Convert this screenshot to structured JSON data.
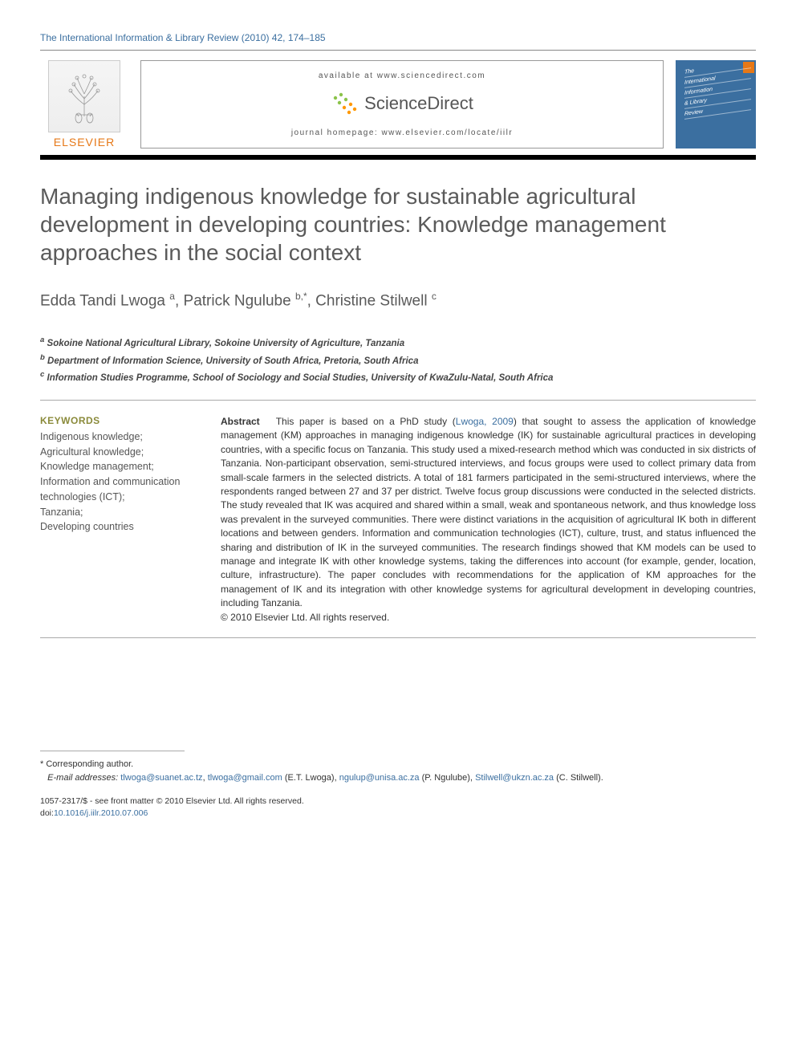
{
  "journal_ref": "The International Information & Library Review (2010) 42, 174–185",
  "banner": {
    "elsevier": "ELSEVIER",
    "available_at": "available at www.sciencedirect.com",
    "scidirect": "ScienceDirect",
    "homepage": "journal homepage: www.elsevier.com/locate/iilr",
    "cover_lines": [
      "The",
      "International",
      "Information",
      "& Library",
      "Review"
    ]
  },
  "colors": {
    "link": "#3b6fa0",
    "elsevier_orange": "#e67817",
    "keywords_heading": "#8a8a3a",
    "title_gray": "#5a5a5a",
    "scidirect_green": "#8bc34a",
    "scidirect_orange": "#ff9800"
  },
  "title": "Managing indigenous knowledge for sustainable agricultural development in developing countries: Knowledge management approaches in the social context",
  "authors_html": "Edda Tandi Lwoga <sup>a</sup>, Patrick Ngulube <sup>b,*</sup>, Christine Stilwell <sup>c</sup>",
  "affiliations": [
    {
      "sup": "a",
      "text": "Sokoine National Agricultural Library, Sokoine University of Agriculture, Tanzania"
    },
    {
      "sup": "b",
      "text": "Department of Information Science, University of South Africa, Pretoria, South Africa"
    },
    {
      "sup": "c",
      "text": "Information Studies Programme, School of Sociology and Social Studies, University of KwaZulu-Natal, South Africa"
    }
  ],
  "keywords_heading": "KEYWORDS",
  "keywords": "Indigenous knowledge;\nAgricultural knowledge;\nKnowledge management;\nInformation and communication technologies (ICT);\nTanzania;\nDeveloping countries",
  "abstract_label": "Abstract",
  "abstract_pre": "This paper is based on a PhD study (",
  "abstract_link": "Lwoga, 2009",
  "abstract_post": ") that sought to assess the application of knowledge management (KM) approaches in managing indigenous knowledge (IK) for sustainable agricultural practices in developing countries, with a specific focus on Tanzania. This study used a mixed-research method which was conducted in six districts of Tanzania. Non-participant observation, semi-structured interviews, and focus groups were used to collect primary data from small-scale farmers in the selected districts. A total of 181 farmers participated in the semi-structured interviews, where the respondents ranged between 27 and 37 per district. Twelve focus group discussions were conducted in the selected districts. The study revealed that IK was acquired and shared within a small, weak and spontaneous network, and thus knowledge loss was prevalent in the surveyed communities. There were distinct variations in the acquisition of agricultural IK both in different locations and between genders. Information and communication technologies (ICT), culture, trust, and status influenced the sharing and distribution of IK in the surveyed communities. The research findings showed that KM models can be used to manage and integrate IK with other knowledge systems, taking the differences into account (for example, gender, location, culture, infrastructure). The paper concludes with recommendations for the application of KM approaches for the management of IK and its integration with other knowledge systems for agricultural development in developing countries, including Tanzania.",
  "abstract_copyright": "© 2010 Elsevier Ltd. All rights reserved.",
  "corresponding": "* Corresponding author.",
  "email_label": "E-mail addresses:",
  "emails": [
    {
      "addr": "tlwoga@suanet.ac.tz",
      "sep": ", "
    },
    {
      "addr": "tlwoga@gmail.com",
      "sep": " (E.T. Lwoga), "
    },
    {
      "addr": "ngulup@unisa.ac.za",
      "sep": " (P. Ngulube), "
    },
    {
      "addr": "Stilwell@ukzn.ac.za",
      "sep": " (C. Stilwell)."
    }
  ],
  "pub_line": "1057-2317/$ - see front matter © 2010 Elsevier Ltd. All rights reserved.",
  "doi_label": "doi:",
  "doi": "10.1016/j.iilr.2010.07.006"
}
